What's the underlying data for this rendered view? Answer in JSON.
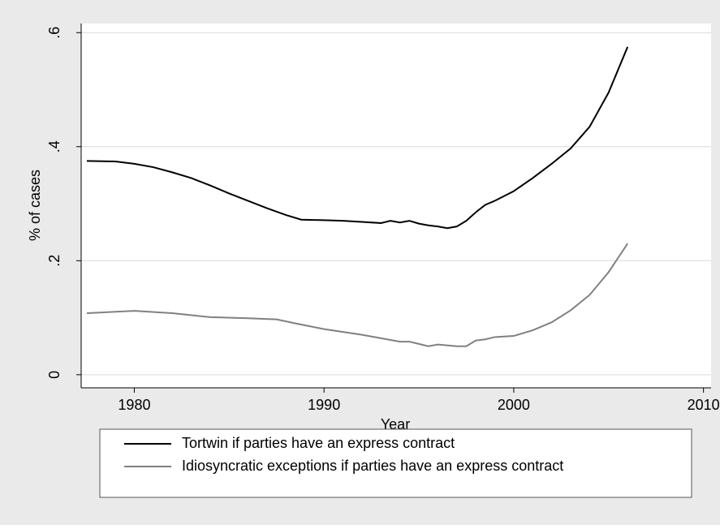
{
  "chart_data": {
    "type": "line",
    "xlabel": "Year",
    "ylabel": "% of cases",
    "xlim": [
      1977.2,
      2010.4
    ],
    "xticks": [
      1980,
      1990,
      2000,
      2010
    ],
    "ylim": [
      -0.023,
      0.616
    ],
    "yticks": [
      0,
      {
        "value": 0.2,
        "label": ".2"
      },
      {
        "value": 0.4,
        "label": ".4"
      },
      {
        "value": 0.6,
        "label": ".6"
      }
    ],
    "grid": true,
    "series": [
      {
        "name": "Tortwin if parties have an express contract",
        "color": "#000000",
        "x": [
          1977.5,
          1979,
          1980,
          1981,
          1982,
          1983,
          1984,
          1985,
          1986,
          1987,
          1988,
          1988.8,
          1990,
          1991,
          1992,
          1993,
          1993.5,
          1994,
          1994.5,
          1995,
          1995.5,
          1996,
          1996.5,
          1997,
          1997.5,
          1998,
          1998.5,
          1999,
          2000,
          2001,
          2002,
          2003,
          2004,
          2005,
          2006
        ],
        "values": [
          0.375,
          0.374,
          0.37,
          0.364,
          0.355,
          0.345,
          0.332,
          0.318,
          0.305,
          0.292,
          0.28,
          0.272,
          0.271,
          0.27,
          0.268,
          0.266,
          0.27,
          0.267,
          0.27,
          0.265,
          0.262,
          0.26,
          0.257,
          0.26,
          0.27,
          0.285,
          0.298,
          0.305,
          0.322,
          0.345,
          0.37,
          0.397,
          0.435,
          0.495,
          0.575
        ]
      },
      {
        "name": "Idiosyncratic exceptions if parties have an express contract",
        "color": "#808080",
        "x": [
          1977.5,
          1980,
          1982,
          1984,
          1986,
          1987.5,
          1988.5,
          1990,
          1992,
          1994,
          1994.5,
          1995.5,
          1996,
          1997,
          1997.5,
          1998,
          1998.5,
          1999,
          2000,
          2001,
          2002,
          2003,
          2004,
          2005,
          2006
        ],
        "values": [
          0.108,
          0.112,
          0.108,
          0.101,
          0.099,
          0.097,
          0.09,
          0.08,
          0.07,
          0.058,
          0.058,
          0.05,
          0.053,
          0.05,
          0.05,
          0.06,
          0.062,
          0.066,
          0.068,
          0.078,
          0.092,
          0.113,
          0.14,
          0.18,
          0.23
        ]
      }
    ]
  }
}
